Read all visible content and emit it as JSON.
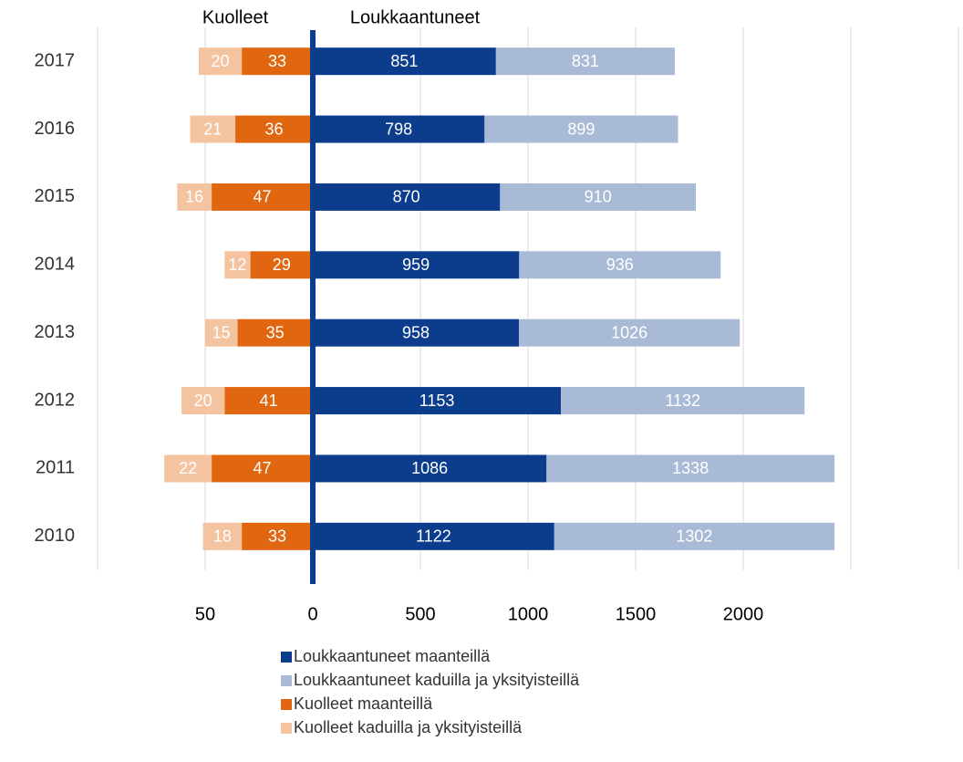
{
  "chart_data": {
    "type": "bar",
    "orientation": "horizontal",
    "stacked": true,
    "diverging": true,
    "left_label": "Kuolleet",
    "right_label": "Loukkaantuneet",
    "categories": [
      "2017",
      "2016",
      "2015",
      "2014",
      "2013",
      "2012",
      "2011",
      "2010"
    ],
    "series": [
      {
        "name": "Loukkaantuneet maanteillä",
        "color": "#0b3d8c",
        "axis": "x",
        "values": [
          851,
          798,
          870,
          959,
          958,
          1153,
          1086,
          1122
        ]
      },
      {
        "name": "Loukkaantuneet kaduilla ja yksityisteillä",
        "color": "#a9bad6",
        "axis": "x",
        "values": [
          831,
          899,
          910,
          936,
          1026,
          1132,
          1338,
          1302
        ]
      },
      {
        "name": "Kuolleet maanteillä",
        "color": "#e0670f",
        "axis": "x2",
        "values": [
          33,
          36,
          47,
          29,
          35,
          41,
          47,
          33
        ]
      },
      {
        "name": "Kuolleet kaduilla ja yksityisteillä",
        "color": "#f4c3a0",
        "axis": "x2",
        "values": [
          20,
          21,
          16,
          12,
          15,
          20,
          22,
          18
        ]
      }
    ],
    "xlim": [
      0,
      3000
    ],
    "xticks": [
      0,
      500,
      1000,
      1500,
      2000
    ],
    "x2lim": [
      0,
      100
    ],
    "x2ticks": [
      50
    ],
    "grid": true,
    "axis_color": "#0b3d8c"
  }
}
